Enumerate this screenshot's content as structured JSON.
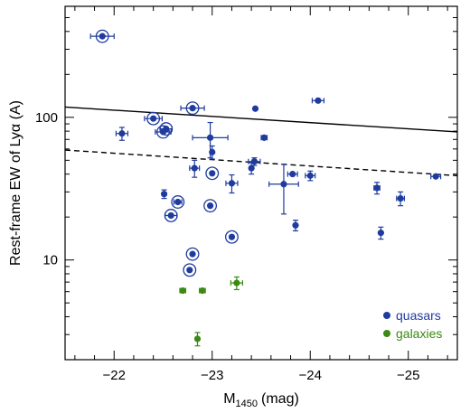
{
  "chart_data": {
    "type": "scatter",
    "xlabel": "M1450 (mag)",
    "xlabel_main": "M",
    "xlabel_sub": "1450",
    "xlabel_unit": "(mag)",
    "ylabel": "Rest-frame EW of Lyα (A)",
    "xlim": [
      -21.5,
      -25.5
    ],
    "ylim": [
      2.0,
      600
    ],
    "yscale": "log",
    "x_ticks": [
      -22,
      -23,
      -24,
      -25
    ],
    "x_tick_labels": [
      "−22",
      "−23",
      "−24",
      "−25"
    ],
    "y_ticks": [
      10,
      100
    ],
    "y_tick_labels": [
      "10",
      "100"
    ],
    "legend_position": "bottom-right",
    "colors": {
      "quasars": "#1f3b9e",
      "galaxies": "#3b8a12",
      "lines": "#000000"
    },
    "series": [
      {
        "name": "quasars",
        "color": "#1f3b9e",
        "points": [
          {
            "x": -21.88,
            "y": 370,
            "xerr": 0.12,
            "yerr": 0,
            "ringed": true
          },
          {
            "x": -22.08,
            "y": 77,
            "xerr": 0.06,
            "yerr": 8,
            "ringed": false
          },
          {
            "x": -22.4,
            "y": 98,
            "xerr": 0.09,
            "yerr": 0,
            "ringed": true
          },
          {
            "x": -22.5,
            "y": 79,
            "xerr": 0.08,
            "yerr": 0,
            "ringed": true
          },
          {
            "x": -22.53,
            "y": 83,
            "xerr": 0.06,
            "yerr": 0,
            "ringed": true
          },
          {
            "x": -22.8,
            "y": 116,
            "xerr": 0.12,
            "yerr": 0,
            "ringed": true
          },
          {
            "x": -23.44,
            "y": 115,
            "xerr": 0,
            "yerr": 0,
            "ringed": false
          },
          {
            "x": -24.08,
            "y": 131,
            "xerr": 0.06,
            "yerr": 0,
            "ringed": false
          },
          {
            "x": -22.51,
            "y": 29,
            "xerr": 0,
            "yerr": 2,
            "ringed": false
          },
          {
            "x": -22.65,
            "y": 25.5,
            "xerr": 0.04,
            "yerr": 0,
            "ringed": true
          },
          {
            "x": -22.58,
            "y": 20.5,
            "xerr": 0.06,
            "yerr": 0,
            "ringed": true
          },
          {
            "x": -22.82,
            "y": 44,
            "xerr": 0.05,
            "yerr": 6,
            "ringed": false
          },
          {
            "x": -22.98,
            "y": 72,
            "xerr": 0.18,
            "yerr": 20,
            "ringed": false
          },
          {
            "x": -23.0,
            "y": 57,
            "xerr": 0,
            "yerr": 6,
            "ringed": false
          },
          {
            "x": -23.0,
            "y": 40.5,
            "xerr": 0,
            "yerr": 0,
            "ringed": true
          },
          {
            "x": -22.98,
            "y": 24,
            "xerr": 0,
            "yerr": 0,
            "ringed": true
          },
          {
            "x": -23.2,
            "y": 34.5,
            "xerr": 0.06,
            "yerr": 5,
            "ringed": false
          },
          {
            "x": -23.4,
            "y": 44,
            "xerr": 0,
            "yerr": 4,
            "ringed": false
          },
          {
            "x": -23.43,
            "y": 49,
            "xerr": 0.06,
            "yerr": 3,
            "ringed": false
          },
          {
            "x": -23.53,
            "y": 72,
            "xerr": 0.03,
            "yerr": 0,
            "ringed": false
          },
          {
            "x": -23.73,
            "y": 34,
            "xerr": 0.15,
            "yerr": 13,
            "ringed": false
          },
          {
            "x": -23.82,
            "y": 40,
            "xerr": 0.05,
            "yerr": 0,
            "ringed": false
          },
          {
            "x": -23.85,
            "y": 17.5,
            "xerr": 0,
            "yerr": 1.5,
            "ringed": false
          },
          {
            "x": -24.0,
            "y": 39,
            "xerr": 0.05,
            "yerr": 3,
            "ringed": false
          },
          {
            "x": -24.68,
            "y": 32,
            "xerr": 0.03,
            "yerr": 3,
            "ringed": false
          },
          {
            "x": -24.72,
            "y": 15.5,
            "xerr": 0,
            "yerr": 1.5,
            "ringed": false
          },
          {
            "x": -24.92,
            "y": 27,
            "xerr": 0.04,
            "yerr": 3,
            "ringed": false
          },
          {
            "x": -25.28,
            "y": 38.5,
            "xerr": 0.05,
            "yerr": 0,
            "ringed": false
          },
          {
            "x": -23.2,
            "y": 14.5,
            "xerr": 0,
            "yerr": 0,
            "ringed": true
          },
          {
            "x": -22.8,
            "y": 11,
            "xerr": 0,
            "yerr": 0,
            "ringed": true
          },
          {
            "x": -22.77,
            "y": 8.5,
            "xerr": 0,
            "yerr": 0,
            "ringed": true
          }
        ]
      },
      {
        "name": "galaxies",
        "color": "#3b8a12",
        "points": [
          {
            "x": -22.7,
            "y": 6.1,
            "xerr": 0.03,
            "yerr": 0
          },
          {
            "x": -22.9,
            "y": 6.1,
            "xerr": 0.03,
            "yerr": 0
          },
          {
            "x": -23.25,
            "y": 6.9,
            "xerr": 0.06,
            "yerr": 0.7
          },
          {
            "x": -22.85,
            "y": 2.8,
            "xerr": 0,
            "yerr": 0.3
          }
        ]
      }
    ],
    "lines": [
      {
        "style": "solid",
        "x": [
          -21.5,
          -25.5
        ],
        "y": [
          118,
          79
        ]
      },
      {
        "style": "dashed",
        "x": [
          -21.5,
          -25.5
        ],
        "y": [
          59,
          39
        ]
      }
    ]
  }
}
